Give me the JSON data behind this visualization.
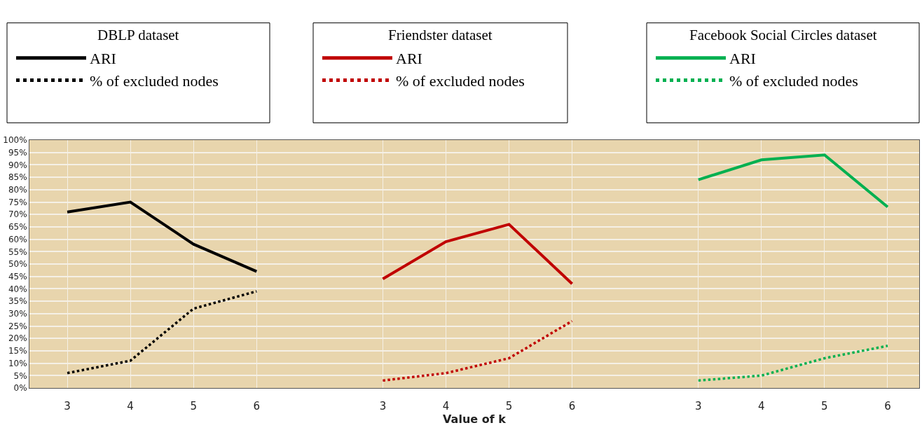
{
  "chart_data": {
    "type": "line",
    "xlabel": "Value of k",
    "categories": [
      "3",
      "4",
      "5",
      "6",
      null,
      "3",
      "4",
      "5",
      "6",
      null,
      "3",
      "4",
      "5",
      "6"
    ],
    "series": [
      {
        "name": "ARI",
        "color": "#000000",
        "line_style": "solid",
        "values": [
          71,
          75,
          58,
          47,
          null,
          null,
          null,
          null,
          null,
          null,
          null,
          null,
          null,
          null
        ]
      },
      {
        "name": "% of excluded nodes",
        "color": "#000000",
        "line_style": "dotted",
        "values": [
          6,
          11,
          32,
          39,
          null,
          null,
          null,
          null,
          null,
          null,
          null,
          null,
          null,
          null
        ]
      },
      {
        "name": "ARI",
        "color": "#c00000",
        "line_style": "solid",
        "values": [
          null,
          null,
          null,
          null,
          null,
          44,
          59,
          66,
          42,
          null,
          null,
          null,
          null,
          null
        ]
      },
      {
        "name": "% of excluded nodes",
        "color": "#c00000",
        "line_style": "dotted",
        "values": [
          null,
          null,
          null,
          null,
          null,
          3,
          6,
          12,
          27,
          null,
          null,
          null,
          null,
          null
        ]
      },
      {
        "name": "ARI",
        "color": "#00b050",
        "line_style": "solid",
        "values": [
          null,
          null,
          null,
          null,
          null,
          null,
          null,
          null,
          null,
          null,
          84,
          92,
          94,
          73
        ]
      },
      {
        "name": "% of excluded nodes",
        "color": "#00b050",
        "line_style": "dotted",
        "values": [
          null,
          null,
          null,
          null,
          null,
          null,
          null,
          null,
          null,
          null,
          3,
          5,
          12,
          17
        ]
      }
    ],
    "annotations": [
      "DBLP dataset",
      "Friendster dataset",
      "Facebook Social Circles dataset"
    ],
    "ylim": [
      0,
      100
    ],
    "yticks": [
      {
        "value": 0,
        "label": "0%"
      },
      {
        "value": 5,
        "label": "5%"
      },
      {
        "value": 10,
        "label": "10%"
      },
      {
        "value": 15,
        "label": "15%"
      },
      {
        "value": 20,
        "label": "20%"
      },
      {
        "value": 25,
        "label": "25%"
      },
      {
        "value": 30,
        "label": "30%"
      },
      {
        "value": 35,
        "label": "35%"
      },
      {
        "value": 40,
        "label": "40%"
      },
      {
        "value": 45,
        "label": "45%"
      },
      {
        "value": 50,
        "label": "50%"
      },
      {
        "value": 55,
        "label": "55%"
      },
      {
        "value": 60,
        "label": "60%"
      },
      {
        "value": 65,
        "label": "65%"
      },
      {
        "value": 70,
        "label": "70%"
      },
      {
        "value": 75,
        "label": "75%"
      },
      {
        "value": 80,
        "label": "80%"
      },
      {
        "value": 85,
        "label": "85%"
      },
      {
        "value": 90,
        "label": "90%"
      },
      {
        "value": 95,
        "label": "95%"
      },
      {
        "value": 100,
        "label": "100%"
      }
    ],
    "grid": true,
    "legend": "top",
    "marker": "none"
  }
}
